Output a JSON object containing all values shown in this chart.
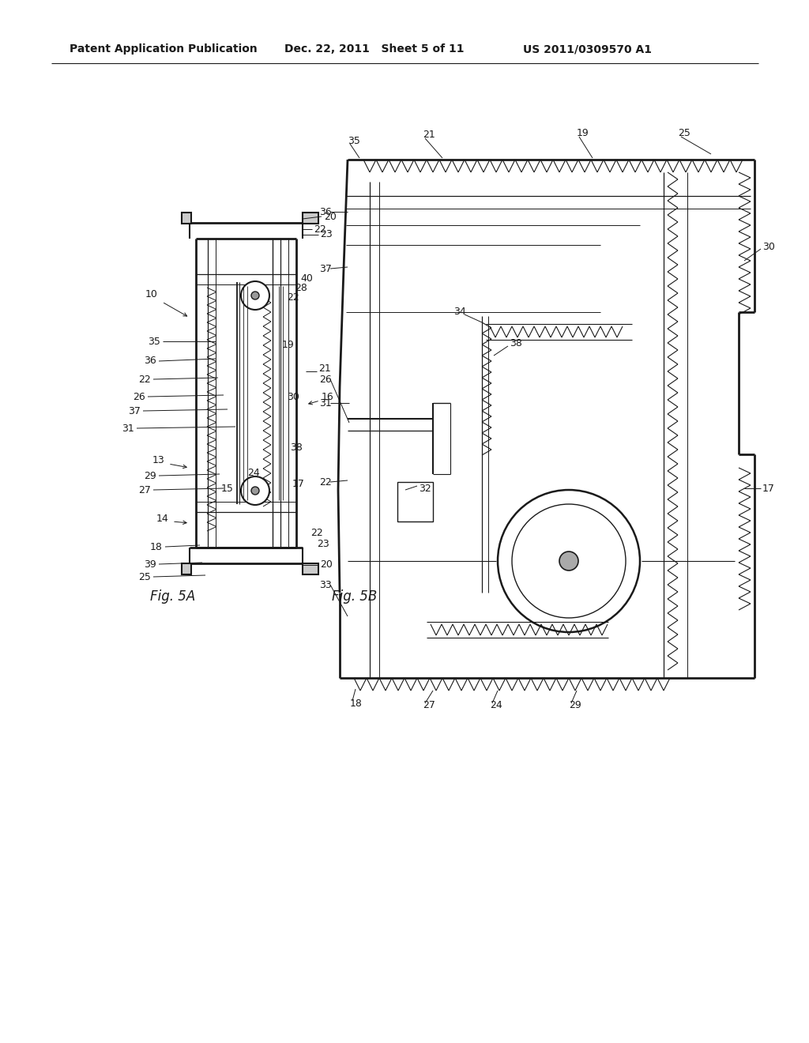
{
  "header_left": "Patent Application Publication",
  "header_mid": "Dec. 22, 2011   Sheet 5 of 11",
  "header_right": "US 2011/0309570 A1",
  "fig_label_left": "Fig. 5A",
  "fig_label_right": "Fig. 5B",
  "background_color": "#ffffff",
  "line_color": "#1a1a1a",
  "text_color": "#1a1a1a",
  "header_fontsize": 10,
  "label_fontsize": 12,
  "ref_fontsize": 9
}
